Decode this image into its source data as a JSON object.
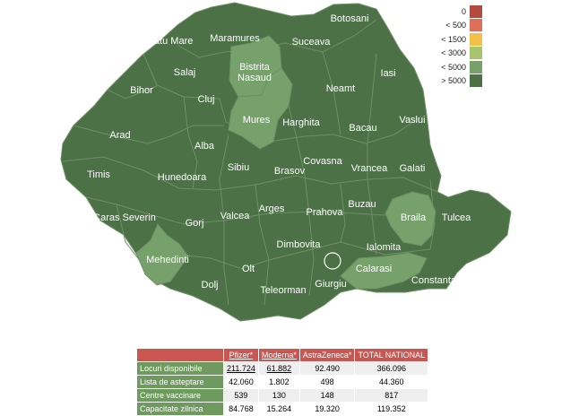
{
  "colors": {
    "dark_green": "#4c7147",
    "light_green": "#76a16b",
    "border": "#6f8f66"
  },
  "legend": [
    {
      "label": "0",
      "color": "#b24a3f"
    },
    {
      "label": "< 500",
      "color": "#de6f59"
    },
    {
      "label": "< 1500",
      "color": "#f3c14a"
    },
    {
      "label": "< 3000",
      "color": "#a8c46f"
    },
    {
      "label": "< 5000",
      "color": "#76a16b"
    },
    {
      "label": "> 5000",
      "color": "#4c7147"
    }
  ],
  "counties": [
    {
      "name": "Botosani",
      "level": "> 5000"
    },
    {
      "name": "Satu Mare",
      "level": "> 5000"
    },
    {
      "name": "Maramures",
      "level": "> 5000"
    },
    {
      "name": "Suceava",
      "level": "> 5000"
    },
    {
      "name": "Bistrita\nNasaud",
      "level": "< 5000"
    },
    {
      "name": "Salaj",
      "level": "> 5000"
    },
    {
      "name": "Iasi",
      "level": "> 5000"
    },
    {
      "name": "Bihor",
      "level": "> 5000"
    },
    {
      "name": "Neamt",
      "level": "> 5000"
    },
    {
      "name": "Cluj",
      "level": "> 5000"
    },
    {
      "name": "Vaslui",
      "level": "> 5000"
    },
    {
      "name": "Mures",
      "level": "< 5000"
    },
    {
      "name": "Harghita",
      "level": "> 5000"
    },
    {
      "name": "Bacau",
      "level": "> 5000"
    },
    {
      "name": "Arad",
      "level": "> 5000"
    },
    {
      "name": "Alba",
      "level": "> 5000"
    },
    {
      "name": "Covasna",
      "level": "> 5000"
    },
    {
      "name": "Sibiu",
      "level": "> 5000"
    },
    {
      "name": "Brasov",
      "level": "> 5000"
    },
    {
      "name": "Timis",
      "level": "> 5000"
    },
    {
      "name": "Hunedoara",
      "level": "> 5000"
    },
    {
      "name": "Vrancea",
      "level": "> 5000"
    },
    {
      "name": "Galati",
      "level": "> 5000"
    },
    {
      "name": "Buzau",
      "level": "> 5000"
    },
    {
      "name": "Arges",
      "level": "> 5000"
    },
    {
      "name": "Caras Severin",
      "level": "> 5000"
    },
    {
      "name": "Prahova",
      "level": "> 5000"
    },
    {
      "name": "Braila",
      "level": "< 5000"
    },
    {
      "name": "Tulcea",
      "level": "> 5000"
    },
    {
      "name": "Gorj",
      "level": "> 5000"
    },
    {
      "name": "Valcea",
      "level": "> 5000"
    },
    {
      "name": "Dimbovita",
      "level": "> 5000"
    },
    {
      "name": "Ialomita",
      "level": "> 5000"
    },
    {
      "name": "Mehedinti",
      "level": "< 5000"
    },
    {
      "name": "Calarasi",
      "level": "< 5000"
    },
    {
      "name": "Olt",
      "level": "> 5000"
    },
    {
      "name": "Giurgiu",
      "level": "> 5000"
    },
    {
      "name": "Constanta",
      "level": "> 5000"
    },
    {
      "name": "Dolj",
      "level": "> 5000"
    },
    {
      "name": "Teleorman",
      "level": "> 5000"
    }
  ],
  "table": {
    "headers": [
      "Pfizer*",
      "Moderna*",
      "AstraZeneca*",
      "TOTAL NATIONAL"
    ],
    "rows": [
      {
        "label": "Locuri disponibile",
        "values": [
          "211.724",
          "61.882",
          "92.490",
          "366.096"
        ]
      },
      {
        "label": "Lista de asteptare",
        "values": [
          "42.060",
          "1.802",
          "498",
          "44.360"
        ]
      },
      {
        "label": "Centre vaccinare",
        "values": [
          "539",
          "130",
          "148",
          "817"
        ]
      },
      {
        "label": "Capacitate zilnica",
        "values": [
          "84.768",
          "15.264",
          "19.320",
          "119.352"
        ]
      }
    ]
  }
}
